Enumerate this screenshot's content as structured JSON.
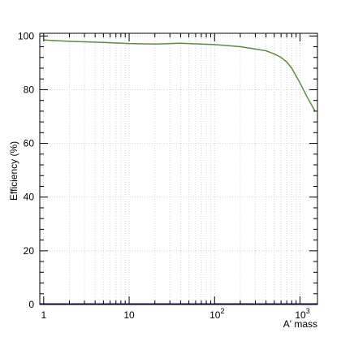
{
  "chart_data": {
    "type": "line",
    "title": "",
    "xlabel": "A' mass",
    "ylabel": "Efficiency (%)",
    "xscale": "log",
    "xlim": [
      0.9,
      1600
    ],
    "ylim": [
      0,
      101
    ],
    "grid": true,
    "x_ticks": [
      {
        "value": 1,
        "base": "1",
        "exp": ""
      },
      {
        "value": 10,
        "base": "10",
        "exp": ""
      },
      {
        "value": 100,
        "base": "10",
        "exp": "2"
      },
      {
        "value": 1000,
        "base": "10",
        "exp": "3"
      }
    ],
    "y_ticks": [
      0,
      20,
      40,
      60,
      80,
      100
    ],
    "series": [
      {
        "color": "#5f8a43",
        "x": [
          1,
          2,
          5,
          10,
          20,
          40,
          70,
          100,
          200,
          400,
          500,
          600,
          700,
          800,
          1000,
          1200,
          1500
        ],
        "y": [
          98.5,
          98.0,
          97.6,
          97.2,
          97.0,
          97.3,
          97.0,
          96.8,
          96.0,
          94.5,
          93.3,
          92.0,
          90.3,
          88.0,
          82.5,
          77.5,
          72.0
        ]
      },
      {
        "color": "#0b0b8a",
        "x": [
          0.9,
          1600
        ],
        "y": [
          0.15,
          0.15
        ]
      }
    ]
  }
}
